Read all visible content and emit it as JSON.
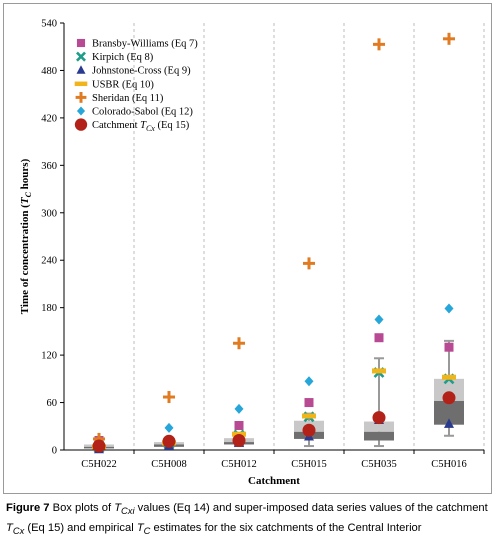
{
  "chart_data": {
    "type": "box-and-scatter",
    "xlabel": "Catchment",
    "ylabel": "Time of concentration (T_C hours)",
    "ylabel_parts": [
      "Time of concentration (",
      "T",
      "C",
      " hours)"
    ],
    "ylim": [
      0,
      540
    ],
    "yticks": [
      0,
      60,
      120,
      180,
      240,
      300,
      360,
      420,
      480,
      540
    ],
    "grid": "vertical-dashed",
    "legend_position": "top-left",
    "categories": [
      "C5H022",
      "C5H008",
      "C5H012",
      "C5H015",
      "C5H035",
      "C5H016"
    ],
    "boxplots": [
      {
        "whisker_low": 0,
        "q1": 2,
        "median": 4,
        "q3": 7,
        "whisker_high": 10
      },
      {
        "whisker_low": 2,
        "q1": 4,
        "median": 7,
        "q3": 10,
        "whisker_high": 14
      },
      {
        "whisker_low": 5,
        "q1": 7,
        "median": 10,
        "q3": 15,
        "whisker_high": 19
      },
      {
        "whisker_low": 5,
        "q1": 14,
        "median": 23,
        "q3": 37,
        "whisker_high": 46
      },
      {
        "whisker_low": 5,
        "q1": 12,
        "median": 23,
        "q3": 36,
        "whisker_high": 116
      },
      {
        "whisker_low": 18,
        "q1": 32,
        "median": 62,
        "q3": 90,
        "whisker_high": 138
      }
    ],
    "series": [
      {
        "name": "Bransby-Williams (Eq 7)",
        "marker": "square",
        "color": "#b84a93",
        "values": [
          12,
          9,
          31,
          60,
          142,
          130
        ]
      },
      {
        "name": "Kirpich (Eq 8)",
        "marker": "x",
        "color": "#1f9d8a",
        "values": [
          3,
          8,
          19,
          42,
          98,
          90
        ]
      },
      {
        "name": "Johnstone-Cross (Eq 9)",
        "marker": "triangle",
        "color": "#2a3a8f",
        "values": [
          1,
          5,
          9,
          17,
          38,
          33
        ]
      },
      {
        "name": "USBR (Eq 10)",
        "marker": "dash",
        "color": "#f0b51a",
        "values": [
          4,
          9,
          20,
          43,
          100,
          92
        ]
      },
      {
        "name": "Sheridan (Eq 11)",
        "marker": "plus",
        "color": "#e07b22",
        "values": [
          14,
          67,
          135,
          236,
          513,
          520
        ]
      },
      {
        "name": "Colorado-Sabol (Eq 12)",
        "marker": "diamond",
        "color": "#26a6d9",
        "values": [
          7,
          28,
          52,
          87,
          165,
          179
        ]
      },
      {
        "name": "Catchment T_Cx (Eq 15)",
        "name_parts": [
          "Catchment ",
          "T",
          "Cx",
          " (Eq 15)"
        ],
        "marker": "circle",
        "color": "#b22218",
        "values": [
          5,
          11,
          12,
          25,
          41,
          66
        ]
      }
    ]
  },
  "caption": {
    "figure_label": "Figure 7",
    "parts": [
      " Box plots of ",
      "T",
      "Cxi",
      " values (Eq 14) and super-imposed data series values of the catchment ",
      "T",
      "Cx",
      " (Eq 15) and empirical ",
      "T",
      "C",
      " estimates for the six catchments of the Central Interior"
    ]
  }
}
